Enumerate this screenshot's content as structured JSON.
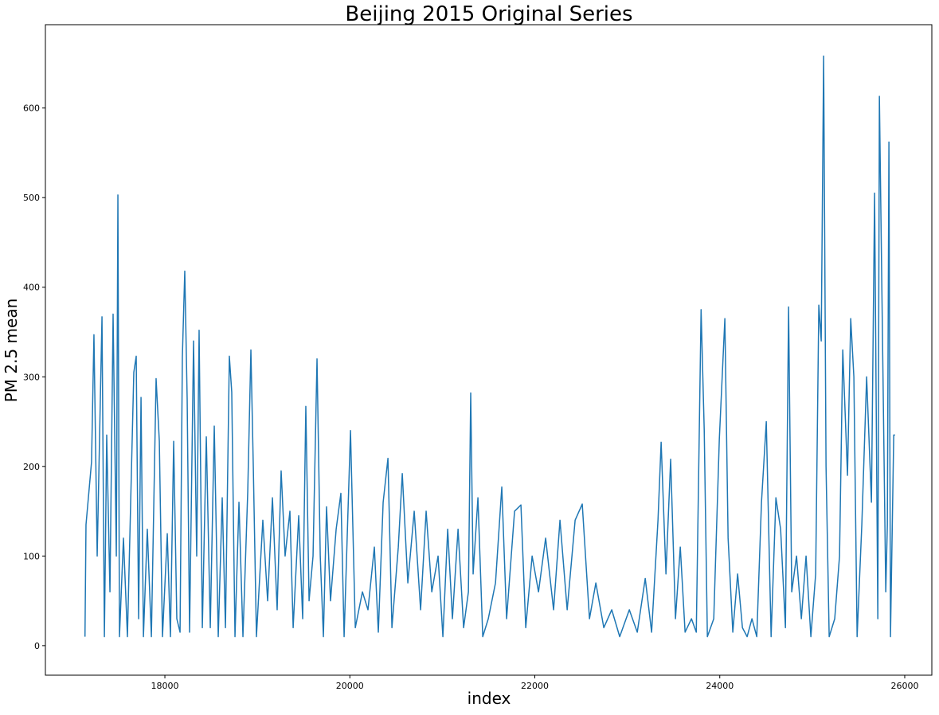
{
  "chart_data": {
    "type": "line",
    "title": "Beijing 2015 Original Series",
    "x_label": "index",
    "y_label": "PM 2.5 mean",
    "color": "#1f77b4",
    "xlim": [
      16708,
      26293
    ],
    "ylim": [
      -33,
      693
    ],
    "xticks": [
      18000,
      20000,
      22000,
      24000,
      26000
    ],
    "yticks": [
      0,
      100,
      200,
      300,
      400,
      500,
      600
    ],
    "x": [
      17136,
      17147,
      17207,
      17233,
      17268,
      17320,
      17346,
      17371,
      17406,
      17440,
      17475,
      17492,
      17509,
      17552,
      17595,
      17664,
      17690,
      17716,
      17742,
      17768,
      17810,
      17854,
      17905,
      17940,
      17974,
      18026,
      18060,
      18095,
      18129,
      18164,
      18189,
      18215,
      18241,
      18267,
      18310,
      18344,
      18370,
      18405,
      18448,
      18491,
      18534,
      18577,
      18620,
      18655,
      18697,
      18723,
      18758,
      18801,
      18844,
      18896,
      18930,
      18956,
      18990,
      19059,
      19111,
      19163,
      19214,
      19257,
      19300,
      19352,
      19387,
      19447,
      19490,
      19524,
      19559,
      19602,
      19645,
      19680,
      19714,
      19748,
      19791,
      19852,
      19903,
      19938,
      20007,
      20059,
      20136,
      20196,
      20265,
      20308,
      20360,
      20412,
      20455,
      20524,
      20567,
      20627,
      20696,
      20765,
      20825,
      20886,
      20954,
      21006,
      21058,
      21109,
      21170,
      21230,
      21282,
      21307,
      21333,
      21385,
      21437,
      21497,
      21575,
      21643,
      21695,
      21781,
      21850,
      21902,
      21971,
      22040,
      22117,
      22203,
      22272,
      22350,
      22436,
      22513,
      22591,
      22660,
      22746,
      22832,
      22918,
      23022,
      23108,
      23194,
      23263,
      23332,
      23366,
      23418,
      23469,
      23521,
      23573,
      23625,
      23694,
      23746,
      23798,
      23832,
      23866,
      23935,
      23995,
      24055,
      24090,
      24141,
      24193,
      24245,
      24296,
      24348,
      24400,
      24451,
      24503,
      24555,
      24607,
      24658,
      24710,
      24744,
      24778,
      24830,
      24882,
      24933,
      24985,
      25037,
      25071,
      25097,
      25123,
      25149,
      25183,
      25243,
      25295,
      25330,
      25381,
      25416,
      25450,
      25485,
      25536,
      25588,
      25640,
      25674,
      25709,
      25726,
      25760,
      25795,
      25812,
      25829,
      25846,
      25881,
      25895
    ],
    "values": [
      10,
      135,
      205,
      347,
      100,
      367,
      10,
      235,
      60,
      370,
      100,
      503,
      10,
      120,
      10,
      305,
      323,
      30,
      277,
      10,
      130,
      10,
      298,
      228,
      10,
      125,
      10,
      228,
      30,
      15,
      322,
      418,
      275,
      15,
      340,
      100,
      352,
      20,
      233,
      20,
      245,
      10,
      165,
      20,
      323,
      283,
      10,
      160,
      10,
      172,
      330,
      200,
      10,
      140,
      50,
      165,
      40,
      195,
      100,
      150,
      20,
      145,
      30,
      267,
      50,
      100,
      320,
      100,
      10,
      155,
      50,
      130,
      170,
      10,
      240,
      20,
      60,
      40,
      110,
      15,
      160,
      209,
      20,
      110,
      192,
      70,
      150,
      40,
      150,
      60,
      100,
      10,
      130,
      30,
      130,
      20,
      60,
      282,
      80,
      165,
      10,
      30,
      70,
      177,
      30,
      150,
      157,
      20,
      100,
      60,
      120,
      40,
      140,
      40,
      140,
      158,
      30,
      70,
      20,
      40,
      10,
      40,
      15,
      75,
      15,
      140,
      227,
      80,
      208,
      30,
      110,
      15,
      30,
      15,
      375,
      240,
      10,
      30,
      230,
      365,
      120,
      15,
      80,
      20,
      10,
      30,
      10,
      160,
      250,
      10,
      165,
      130,
      20,
      378,
      60,
      100,
      30,
      100,
      10,
      80,
      380,
      340,
      658,
      200,
      10,
      30,
      100,
      330,
      190,
      365,
      300,
      10,
      135,
      300,
      160,
      505,
      30,
      613,
      340,
      60,
      135,
      562,
      10,
      235,
      235
    ]
  }
}
